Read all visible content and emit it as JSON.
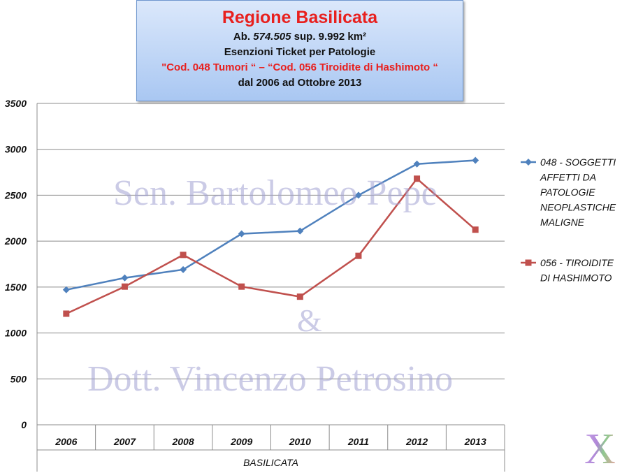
{
  "header": {
    "title": "Regione Basilicata",
    "line2_prefix": "Ab. ",
    "line2_population": "574.505",
    "line2_suffix": " sup. 9.992 km²",
    "line3": "Esenzioni Ticket per Patologie",
    "line4": "\"Cod. 048 Tumori “ – “Cod. 056 Tiroidite di Hashimoto  “",
    "line5": "dal 2006 ad Ottobre 2013"
  },
  "watermark": {
    "line1": "Sen. Bartolomeo Pepe",
    "line2": "&",
    "line3": "Dott. Vincenzo Petrosino"
  },
  "logo_text": "X",
  "chart_data": {
    "type": "line",
    "x": [
      "2006",
      "2007",
      "2008",
      "2009",
      "2010",
      "2011",
      "2012",
      "2013"
    ],
    "xlabel": "BASILICATA",
    "ylim": [
      0,
      3500
    ],
    "yticks": [
      0,
      500,
      1000,
      1500,
      2000,
      2500,
      3000,
      3500
    ],
    "grid": true,
    "legend_position": "right",
    "series": [
      {
        "name": "048 - SOGGETTI AFFETTI DA PATOLOGIE NEOPLASTICHE MALIGNE",
        "legend_lines": [
          "048 - SOGGETTI",
          "AFFETTI DA",
          "PATOLOGIE",
          "NEOPLASTICHE",
          "MALIGNE"
        ],
        "color": "#4f81bd",
        "marker": "diamond",
        "values": [
          1470,
          1600,
          1690,
          2080,
          2110,
          2500,
          2840,
          2880
        ]
      },
      {
        "name": "056 - TIROIDITE DI HASHIMOTO",
        "legend_lines": [
          "056 - TIROIDITE",
          "DI HASHIMOTO"
        ],
        "color": "#c0504d",
        "marker": "square",
        "values": [
          1210,
          1505,
          1850,
          1505,
          1395,
          1840,
          2680,
          2125
        ]
      }
    ]
  }
}
